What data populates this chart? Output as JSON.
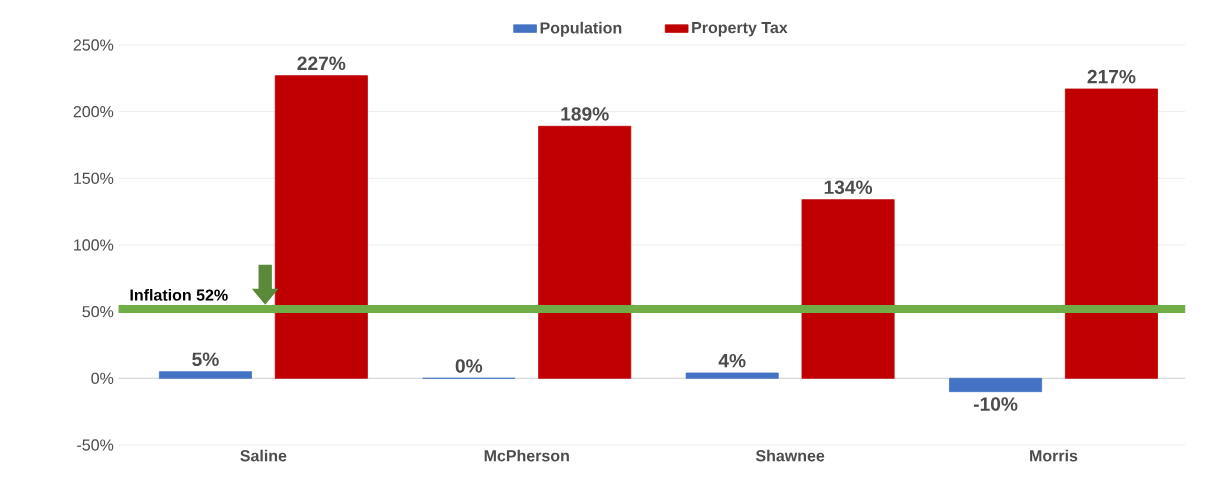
{
  "chart_data": {
    "type": "bar",
    "categories": [
      "Saline",
      "McPherson",
      "Shawnee",
      "Morris"
    ],
    "series": [
      {
        "name": "Population",
        "color": "#4472c4",
        "values": [
          5,
          0,
          4,
          -10
        ],
        "value_labels": [
          "5%",
          "0%",
          "4%",
          "-10%"
        ]
      },
      {
        "name": "Property Tax",
        "color": "#c00000",
        "values": [
          227,
          189,
          134,
          217
        ],
        "value_labels": [
          "227%",
          "189%",
          "134%",
          "217%"
        ]
      }
    ],
    "ylim": [
      -50,
      250
    ],
    "yticks": [
      {
        "value": -50,
        "label": "-50%"
      },
      {
        "value": 0,
        "label": "0%"
      },
      {
        "value": 50,
        "label": "50%"
      },
      {
        "value": 100,
        "label": "100%"
      },
      {
        "value": 150,
        "label": "150%"
      },
      {
        "value": 200,
        "label": "200%"
      },
      {
        "value": 250,
        "label": "250%"
      }
    ],
    "ref_lines": [
      {
        "axis": "y",
        "value": 52,
        "label": "Inflation 52%",
        "color": "#70ad47"
      }
    ],
    "grid": "y",
    "legend": "top"
  }
}
